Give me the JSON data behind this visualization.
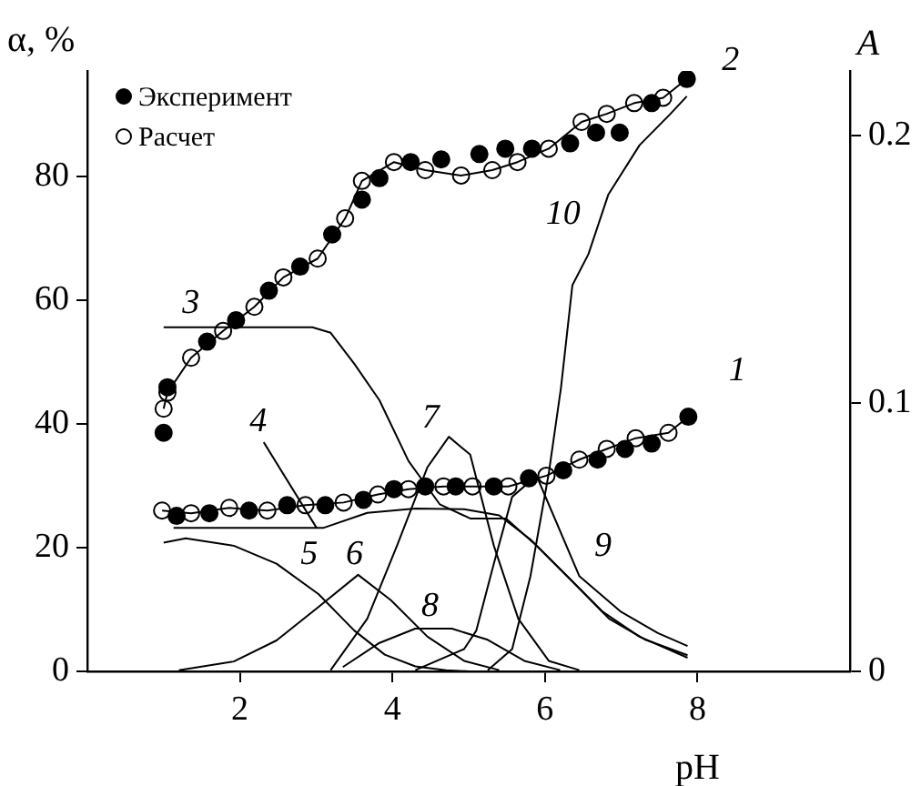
{
  "chart_data": {
    "type": "line",
    "xlabel": "pH",
    "ylabel": "α, %",
    "y2label": "A",
    "xlim": [
      0,
      10
    ],
    "xticks": [
      2,
      4,
      6,
      8
    ],
    "ylim": [
      0,
      97
    ],
    "yticks": [
      0,
      20,
      40,
      60,
      80
    ],
    "y2lim": [
      0,
      0.224
    ],
    "y2ticks": [
      0,
      0.1,
      0.2
    ],
    "grid": false,
    "legend": "top left",
    "line_style": "solid",
    "marker": "none",
    "series": [
      {
        "name": "3",
        "color": "#000000",
        "x": [
          1.0,
          2.95,
          3.19,
          3.5,
          3.83,
          4.21,
          4.62,
          5.02,
          5.49,
          5.89,
          6.37,
          6.84,
          7.32,
          7.87
        ],
        "values": [
          55.6,
          55.6,
          54.7,
          49.7,
          43.8,
          34,
          27,
          24.7,
          24.7,
          20.3,
          14.4,
          8.5,
          5.1,
          2.6
        ]
      },
      {
        "name": "4",
        "color": "#000000",
        "x": [
          1.13,
          3.1,
          3.67,
          4.3,
          4.94,
          5.4,
          5.81,
          6.29,
          6.76,
          7.24,
          7.87
        ],
        "values": [
          23.2,
          23.2,
          25.6,
          26.3,
          26.2,
          25.2,
          21.3,
          15.4,
          9.6,
          5.6,
          2.2
        ]
      },
      {
        "name": "5",
        "color": "#000000",
        "x": [
          1.0,
          1.29,
          1.92,
          2.48,
          3.03,
          3.5,
          3.9,
          4.3,
          4.7,
          5.0
        ],
        "values": [
          20.8,
          21.5,
          20.3,
          17.4,
          12.5,
          6.6,
          2.7,
          0.8,
          0.2,
          0
        ]
      },
      {
        "name": "6",
        "color": "#000000",
        "x": [
          1.2,
          1.92,
          2.48,
          3.03,
          3.55,
          3.98,
          4.46,
          4.94,
          5.4
        ],
        "values": [
          0.2,
          1.6,
          5,
          10.4,
          15.6,
          11.5,
          5.6,
          1.7,
          0.2
        ]
      },
      {
        "name": "7",
        "color": "#000000",
        "x": [
          3.19,
          3.67,
          4.06,
          4.46,
          4.74,
          5.02,
          5.33,
          5.65,
          6.05,
          6.45
        ],
        "values": [
          0.2,
          8.5,
          20.3,
          33,
          37.9,
          35,
          20.3,
          8.5,
          1.7,
          0.2
        ]
      },
      {
        "name": "8",
        "color": "#000000",
        "x": [
          3.35,
          3.83,
          4.3,
          4.78,
          5.25,
          5.73,
          6.2
        ],
        "values": [
          0.7,
          4.6,
          6.9,
          6.9,
          5.1,
          1.7,
          0.2
        ]
      },
      {
        "name": "9",
        "color": "#000000",
        "x": [
          4.3,
          4.94,
          5.1,
          5.33,
          5.57,
          5.89,
          6.45,
          7.0,
          7.48,
          7.87
        ],
        "values": [
          0.2,
          3.6,
          6.6,
          17.4,
          28.2,
          31.6,
          15.4,
          9.6,
          6.2,
          4.1
        ]
      },
      {
        "name": "10",
        "color": "#000000",
        "x": [
          5.25,
          5.57,
          5.81,
          6.05,
          6.21,
          6.36,
          6.57,
          6.83,
          7.24,
          7.64,
          7.86
        ],
        "values": [
          0.2,
          3.6,
          15.4,
          32,
          45.8,
          62.4,
          67.4,
          77,
          85,
          90,
          92.9
        ]
      },
      {
        "name": "1",
        "axis": "y2",
        "color": "#000000",
        "x": [
          0.98,
          1.36,
          1.86,
          2.36,
          2.86,
          3.36,
          3.81,
          4.21,
          4.67,
          5.05,
          5.52,
          6.02,
          6.45,
          6.81,
          7.19,
          7.62,
          7.88
        ],
        "values": [
          0.06,
          0.059,
          0.061,
          0.06,
          0.062,
          0.063,
          0.066,
          0.068,
          0.069,
          0.069,
          0.069,
          0.073,
          0.079,
          0.083,
          0.087,
          0.089,
          0.095
        ]
      },
      {
        "name": "2",
        "axis": "y2",
        "color": "#000000",
        "x": [
          1.0,
          1.05,
          1.36,
          1.78,
          2.19,
          2.57,
          3.02,
          3.38,
          3.6,
          4.02,
          4.43,
          4.9,
          5.31,
          5.64,
          6.05,
          6.48,
          6.81,
          7.17,
          7.55,
          7.86
        ],
        "values": [
          0.098,
          0.104,
          0.117,
          0.127,
          0.136,
          0.147,
          0.154,
          0.169,
          0.183,
          0.19,
          0.187,
          0.185,
          0.187,
          0.19,
          0.195,
          0.205,
          0.208,
          0.212,
          0.214,
          0.221
        ]
      },
      {
        "type": "scatter",
        "name": "Эксперимент",
        "axis": "y2",
        "color": "#000000",
        "marker": "circle",
        "x": [
          1.17,
          1.6,
          2.12,
          2.62,
          3.12,
          3.62,
          4.02,
          4.43,
          4.83,
          5.33,
          5.79,
          6.24,
          6.69,
          7.05,
          7.4,
          7.88,
          1.0,
          1.05,
          1.57,
          1.95,
          2.38,
          2.79,
          3.21,
          3.6,
          3.83,
          4.24,
          4.64,
          5.14,
          5.48,
          5.83,
          6.33,
          6.67,
          6.98,
          7.4,
          7.86
        ],
        "values": [
          0.058,
          0.059,
          0.06,
          0.062,
          0.062,
          0.064,
          0.068,
          0.069,
          0.069,
          0.069,
          0.072,
          0.075,
          0.079,
          0.083,
          0.085,
          0.095,
          0.089,
          0.106,
          0.123,
          0.131,
          0.142,
          0.151,
          0.163,
          0.176,
          0.184,
          0.19,
          0.191,
          0.193,
          0.195,
          0.195,
          0.197,
          0.201,
          0.201,
          0.212,
          0.221
        ]
      },
      {
        "type": "scatter",
        "name": "Расчет",
        "axis": "y2",
        "color": "#ffffff",
        "marker": "circle",
        "x": [
          0.98,
          1.36,
          1.86,
          2.36,
          2.86,
          3.36,
          3.81,
          4.21,
          4.67,
          5.05,
          5.52,
          6.02,
          6.45,
          6.81,
          7.19,
          7.62,
          1.0,
          1.05,
          1.36,
          1.78,
          2.19,
          2.57,
          3.02,
          3.38,
          3.6,
          4.02,
          4.43,
          4.9,
          5.31,
          5.64,
          6.05,
          6.48,
          6.81,
          7.17,
          7.55
        ],
        "values": [
          0.06,
          0.059,
          0.061,
          0.06,
          0.062,
          0.063,
          0.066,
          0.068,
          0.069,
          0.069,
          0.069,
          0.073,
          0.079,
          0.083,
          0.087,
          0.089,
          0.098,
          0.104,
          0.117,
          0.127,
          0.136,
          0.147,
          0.154,
          0.169,
          0.183,
          0.19,
          0.187,
          0.185,
          0.187,
          0.19,
          0.195,
          0.205,
          0.208,
          0.212,
          0.214
        ]
      }
    ]
  }
}
